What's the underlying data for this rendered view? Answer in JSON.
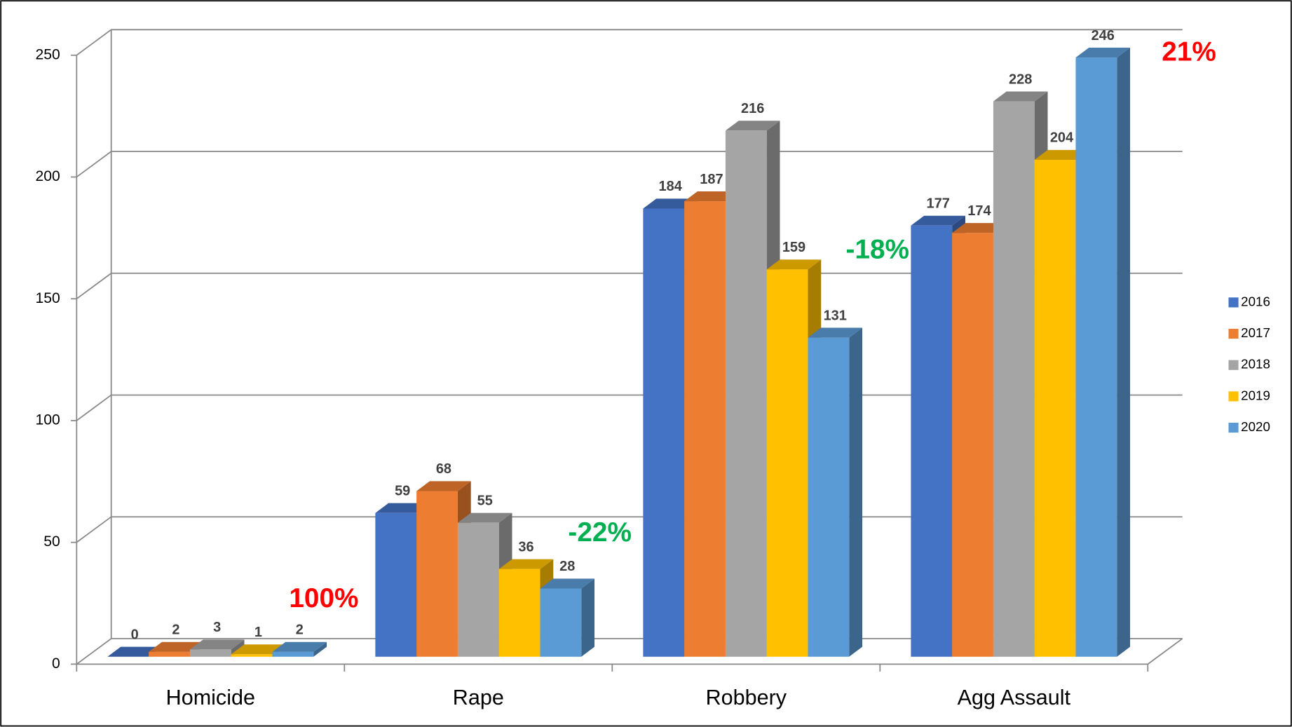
{
  "chart_data": {
    "type": "bar3d",
    "categories": [
      "Homicide",
      "Rape",
      "Robbery",
      "Agg Assault"
    ],
    "series": [
      {
        "name": "2016",
        "color": "#4472c4",
        "values": [
          0,
          59,
          184,
          177
        ]
      },
      {
        "name": "2017",
        "color": "#ed7d31",
        "values": [
          2,
          68,
          187,
          174
        ]
      },
      {
        "name": "2018",
        "color": "#a5a5a5",
        "values": [
          3,
          55,
          216,
          228
        ]
      },
      {
        "name": "2019",
        "color": "#ffc000",
        "values": [
          1,
          36,
          159,
          204
        ]
      },
      {
        "name": "2020",
        "color": "#5b9bd5",
        "values": [
          2,
          28,
          131,
          246
        ]
      }
    ],
    "annotations": [
      {
        "text": "100%",
        "color": "#ff0000"
      },
      {
        "text": "-22%",
        "color": "#00b050"
      },
      {
        "text": "-18%",
        "color": "#00b050"
      },
      {
        "text": "21%",
        "color": "#ff0000"
      }
    ],
    "ylim": [
      0,
      250
    ],
    "yticks": [
      0,
      50,
      100,
      150,
      200,
      250
    ],
    "grid": true,
    "legend": "right"
  }
}
